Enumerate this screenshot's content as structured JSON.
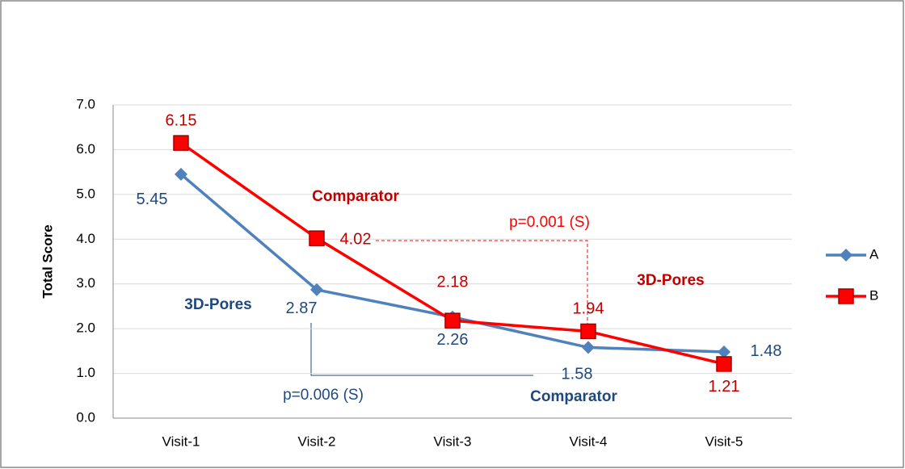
{
  "chart_data": {
    "type": "line",
    "y_label": "Total Score",
    "categories": [
      "Visit-1",
      "Visit-2",
      "Visit-3",
      "Visit-4",
      "Visit-5"
    ],
    "series": [
      {
        "name": "A",
        "color": "#4f81bd",
        "marker": "diamond",
        "label_color": "#1f497d",
        "values": [
          5.45,
          2.87,
          2.26,
          1.58,
          1.48
        ]
      },
      {
        "name": "B",
        "color": "#ff0000",
        "marker": "square",
        "label_color": "#c00000",
        "values": [
          6.15,
          4.02,
          2.18,
          1.94,
          1.21
        ]
      }
    ],
    "ylim": [
      0,
      7
    ],
    "yticks": [
      {
        "value": 0,
        "label": "0.0"
      },
      {
        "value": 1,
        "label": "1.0"
      },
      {
        "value": 2,
        "label": "2.0"
      },
      {
        "value": 3,
        "label": "3.0"
      },
      {
        "value": 4,
        "label": "4.0"
      },
      {
        "value": 5,
        "label": "5.0"
      },
      {
        "value": 6,
        "label": "6.0"
      },
      {
        "value": 7,
        "label": "7.0"
      }
    ],
    "grid": true,
    "legend": "right",
    "annotations": [
      {
        "text": "Comparator",
        "color": "#c00000",
        "bold": true
      },
      {
        "text": "3D-Pores",
        "color": "#1f497d",
        "bold": true
      },
      {
        "text": "p=0.001 (S)",
        "color": "#ff0000",
        "bold": false
      },
      {
        "text": "3D-Pores",
        "color": "#c00000",
        "bold": true
      },
      {
        "text": "p=0.006 (S)",
        "color": "#1f497d",
        "bold": false
      },
      {
        "text": "Comparator",
        "color": "#1f497d",
        "bold": true
      }
    ]
  }
}
